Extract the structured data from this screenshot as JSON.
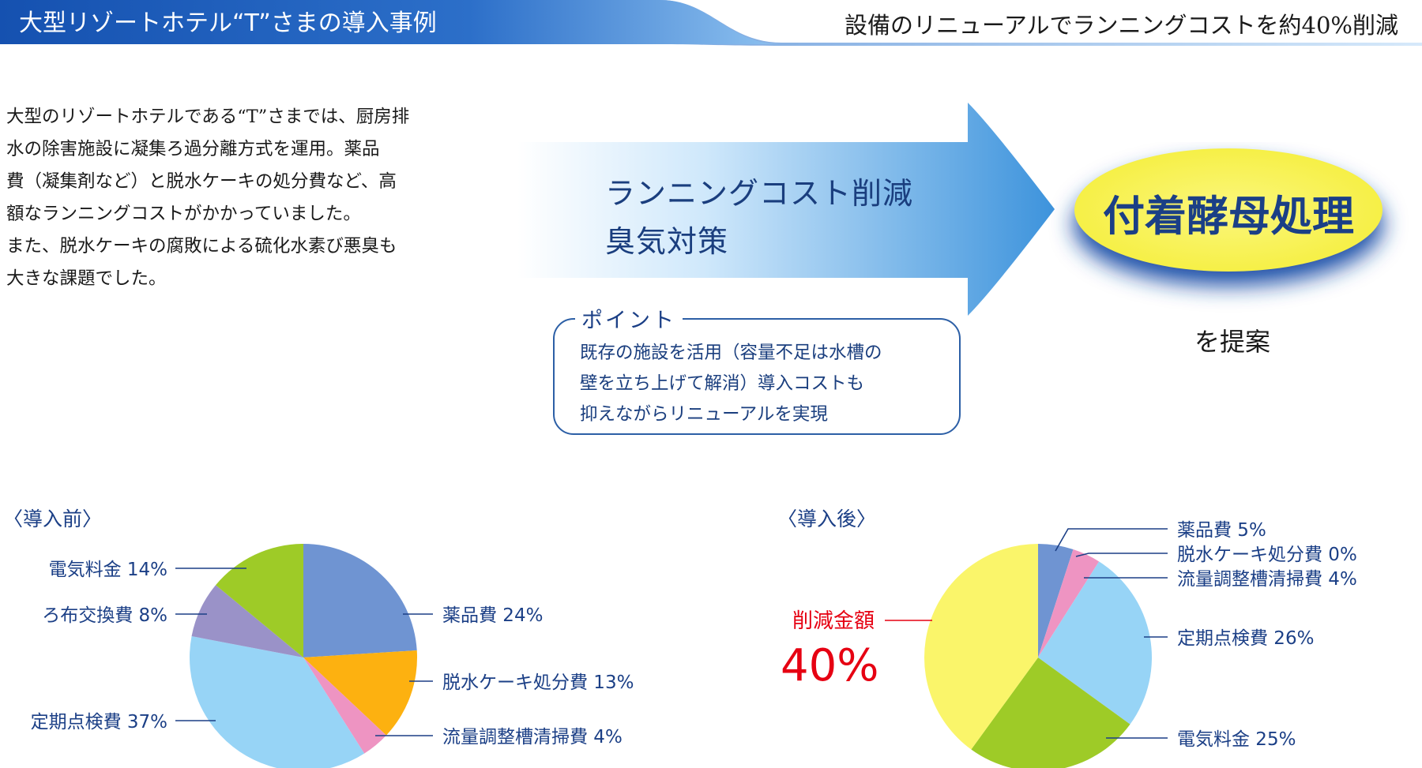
{
  "header": {
    "title": "大型リゾートホテル“T”さまの導入事例",
    "tagline": "設備のリニューアルでランニングコストを約40%削減",
    "band_color": "#1a5ab5"
  },
  "intro": {
    "lines": [
      "大型のリゾートホテルである“T”さまでは、厨房排",
      "水の除害施設に凝集ろ過分離方式を運用。薬品",
      "費（凝集剤など）と脱水ケーキの処分費など、高",
      "額なランニングコストがかかっていました。",
      "また、脱水ケーキの腐敗による硫化水素び悪臭も",
      "大きな課題でした。"
    ]
  },
  "arrow": {
    "lines": [
      "ランニングコスト削減",
      "臭気対策"
    ],
    "color": "#4fa3e3"
  },
  "solution": {
    "title": "付着酵母処理",
    "suffix": "を提案",
    "fill_color": "#faf56a",
    "glow_color": "#1a4fa8"
  },
  "point": {
    "label": "ポイント",
    "lines": [
      "既存の施設を活用（容量不足は水槽の",
      "壁を立ち上げて解消）導入コストも",
      "抑えながらリニューアルを実現"
    ]
  },
  "chart_data": [
    {
      "type": "pie",
      "title": "〈導入前〉",
      "start_angle_deg": 0,
      "direction": "clockwise",
      "slices": [
        {
          "label": "薬品費",
          "value": 24,
          "display": "24%",
          "color": "#6f94d2"
        },
        {
          "label": "脱水ケーキ処分費",
          "value": 13,
          "display": "13%",
          "color": "#fdb110"
        },
        {
          "label": "流量調整槽清掃費",
          "value": 4,
          "display": "4%",
          "color": "#ee94c2"
        },
        {
          "label": "定期点検費",
          "value": 37,
          "display": "37%",
          "color": "#97d4f6"
        },
        {
          "label": "ろ布交換費",
          "value": 8,
          "display": "8%",
          "color": "#9a92c8"
        },
        {
          "label": "電気料金",
          "value": 14,
          "display": "14%",
          "color": "#9ecb27"
        }
      ]
    },
    {
      "type": "pie",
      "title": "〈導入後〉",
      "start_angle_deg": 0,
      "direction": "clockwise",
      "slices": [
        {
          "label": "薬品費",
          "value": 5,
          "display": "5%",
          "color": "#6f94d2"
        },
        {
          "label": "脱水ケーキ処分費",
          "value": 0,
          "display": "0%",
          "color": "#fdb110"
        },
        {
          "label": "流量調整槽清掃費",
          "value": 4,
          "display": "4%",
          "color": "#ee94c2"
        },
        {
          "label": "定期点検費",
          "value": 26,
          "display": "26%",
          "color": "#97d4f6"
        },
        {
          "label": "電気料金",
          "value": 25,
          "display": "25%",
          "color": "#9ecb27"
        },
        {
          "label": "削減金額",
          "value": 40,
          "display": "40%",
          "color": "#faf56a",
          "highlight_color": "#e60012"
        }
      ]
    }
  ]
}
